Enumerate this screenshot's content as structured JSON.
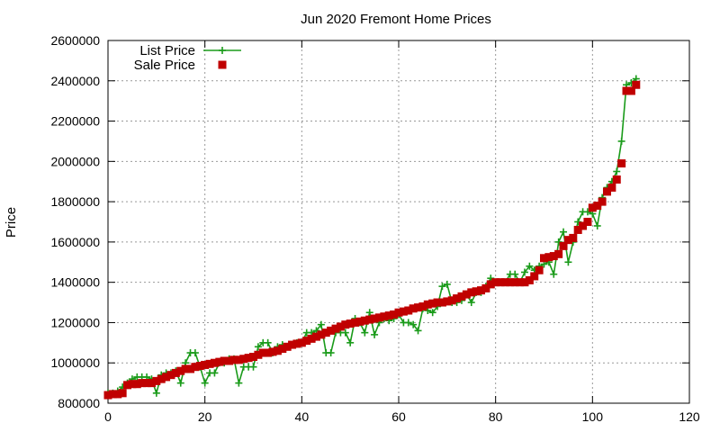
{
  "chart_data": {
    "type": "line",
    "title": "Jun 2020 Fremont Home Prices",
    "xlabel": "",
    "ylabel": "Price",
    "xlim": [
      0,
      120
    ],
    "ylim": [
      800000,
      2600000
    ],
    "x_ticks": [
      "0",
      "20",
      "40",
      "60",
      "80",
      "100",
      "120"
    ],
    "y_ticks": [
      "800000",
      "1000000",
      "1200000",
      "1400000",
      "1600000",
      "1800000",
      "2000000",
      "2200000",
      "2400000",
      "2600000"
    ],
    "grid": true,
    "legend_position": "top-left",
    "colors": {
      "list": "#1a9b1a",
      "sale": "#c00000",
      "grid": "#999999",
      "axis": "#000000"
    },
    "series": [
      {
        "name": "List Price",
        "style": "line-plus",
        "x": [
          0,
          1,
          2,
          3,
          4,
          5,
          6,
          7,
          8,
          9,
          10,
          11,
          12,
          13,
          14,
          15,
          16,
          17,
          18,
          19,
          20,
          21,
          22,
          23,
          24,
          25,
          26,
          27,
          28,
          29,
          30,
          31,
          32,
          33,
          34,
          35,
          36,
          37,
          38,
          39,
          40,
          41,
          42,
          43,
          44,
          45,
          46,
          47,
          48,
          49,
          50,
          51,
          52,
          53,
          54,
          55,
          56,
          57,
          58,
          59,
          60,
          61,
          62,
          63,
          64,
          65,
          66,
          67,
          68,
          69,
          70,
          71,
          72,
          73,
          74,
          75,
          76,
          77,
          78,
          79,
          80,
          81,
          82,
          83,
          84,
          85,
          86,
          87,
          88,
          89,
          90,
          91,
          92,
          93,
          94,
          95,
          96,
          97,
          98,
          99,
          100,
          101,
          102,
          103,
          104,
          105,
          106,
          107,
          108,
          109
        ],
        "values": [
          850000,
          850000,
          860000,
          880000,
          900000,
          920000,
          930000,
          930000,
          930000,
          920000,
          850000,
          940000,
          950000,
          950000,
          960000,
          900000,
          1000000,
          1050000,
          1050000,
          980000,
          900000,
          950000,
          950000,
          1000000,
          1000000,
          1020000,
          1020000,
          900000,
          980000,
          980000,
          980000,
          1080000,
          1100000,
          1100000,
          1050000,
          1080000,
          1090000,
          1080000,
          1090000,
          1100000,
          1100000,
          1150000,
          1150000,
          1160000,
          1190000,
          1050000,
          1050000,
          1150000,
          1150000,
          1150000,
          1100000,
          1220000,
          1200000,
          1150000,
          1250000,
          1140000,
          1200000,
          1220000,
          1210000,
          1220000,
          1240000,
          1200000,
          1200000,
          1190000,
          1160000,
          1270000,
          1260000,
          1250000,
          1280000,
          1380000,
          1390000,
          1300000,
          1300000,
          1310000,
          1340000,
          1300000,
          1350000,
          1350000,
          1380000,
          1420000,
          1400000,
          1400000,
          1400000,
          1440000,
          1440000,
          1400000,
          1450000,
          1480000,
          1460000,
          1480000,
          1490000,
          1500000,
          1440000,
          1600000,
          1650000,
          1500000,
          1600000,
          1700000,
          1750000,
          1750000,
          1740000,
          1680000,
          1820000,
          1870000,
          1900000,
          1950000,
          2100000,
          2380000,
          2390000,
          2410000
        ]
      },
      {
        "name": "Sale Price",
        "style": "square",
        "x": [
          0,
          1,
          2,
          3,
          4,
          5,
          6,
          7,
          8,
          9,
          10,
          11,
          12,
          13,
          14,
          15,
          16,
          17,
          18,
          19,
          20,
          21,
          22,
          23,
          24,
          25,
          26,
          27,
          28,
          29,
          30,
          31,
          32,
          33,
          34,
          35,
          36,
          37,
          38,
          39,
          40,
          41,
          42,
          43,
          44,
          45,
          46,
          47,
          48,
          49,
          50,
          51,
          52,
          53,
          54,
          55,
          56,
          57,
          58,
          59,
          60,
          61,
          62,
          63,
          64,
          65,
          66,
          67,
          68,
          69,
          70,
          71,
          72,
          73,
          74,
          75,
          76,
          77,
          78,
          79,
          80,
          81,
          82,
          83,
          84,
          85,
          86,
          87,
          88,
          89,
          90,
          91,
          92,
          93,
          94,
          95,
          96,
          97,
          98,
          99,
          100,
          101,
          102,
          103,
          104,
          105,
          106,
          107,
          108,
          109
        ],
        "values": [
          840000,
          845000,
          845000,
          850000,
          890000,
          895000,
          895000,
          900000,
          900000,
          900000,
          910000,
          920000,
          930000,
          940000,
          950000,
          960000,
          970000,
          970000,
          980000,
          985000,
          990000,
          995000,
          1000000,
          1005000,
          1010000,
          1010000,
          1015000,
          1015000,
          1020000,
          1025000,
          1030000,
          1040000,
          1050000,
          1050000,
          1055000,
          1060000,
          1070000,
          1080000,
          1090000,
          1095000,
          1100000,
          1110000,
          1120000,
          1130000,
          1140000,
          1150000,
          1160000,
          1170000,
          1180000,
          1190000,
          1195000,
          1200000,
          1205000,
          1210000,
          1215000,
          1220000,
          1225000,
          1230000,
          1235000,
          1240000,
          1250000,
          1255000,
          1260000,
          1270000,
          1275000,
          1280000,
          1290000,
          1295000,
          1300000,
          1300000,
          1305000,
          1310000,
          1320000,
          1330000,
          1340000,
          1350000,
          1355000,
          1360000,
          1370000,
          1390000,
          1400000,
          1400000,
          1400000,
          1400000,
          1400000,
          1400000,
          1400000,
          1410000,
          1430000,
          1460000,
          1520000,
          1525000,
          1530000,
          1540000,
          1580000,
          1610000,
          1620000,
          1660000,
          1680000,
          1700000,
          1770000,
          1780000,
          1800000,
          1850000,
          1870000,
          1910000,
          1990000,
          2350000,
          2350000,
          2380000
        ]
      }
    ]
  }
}
